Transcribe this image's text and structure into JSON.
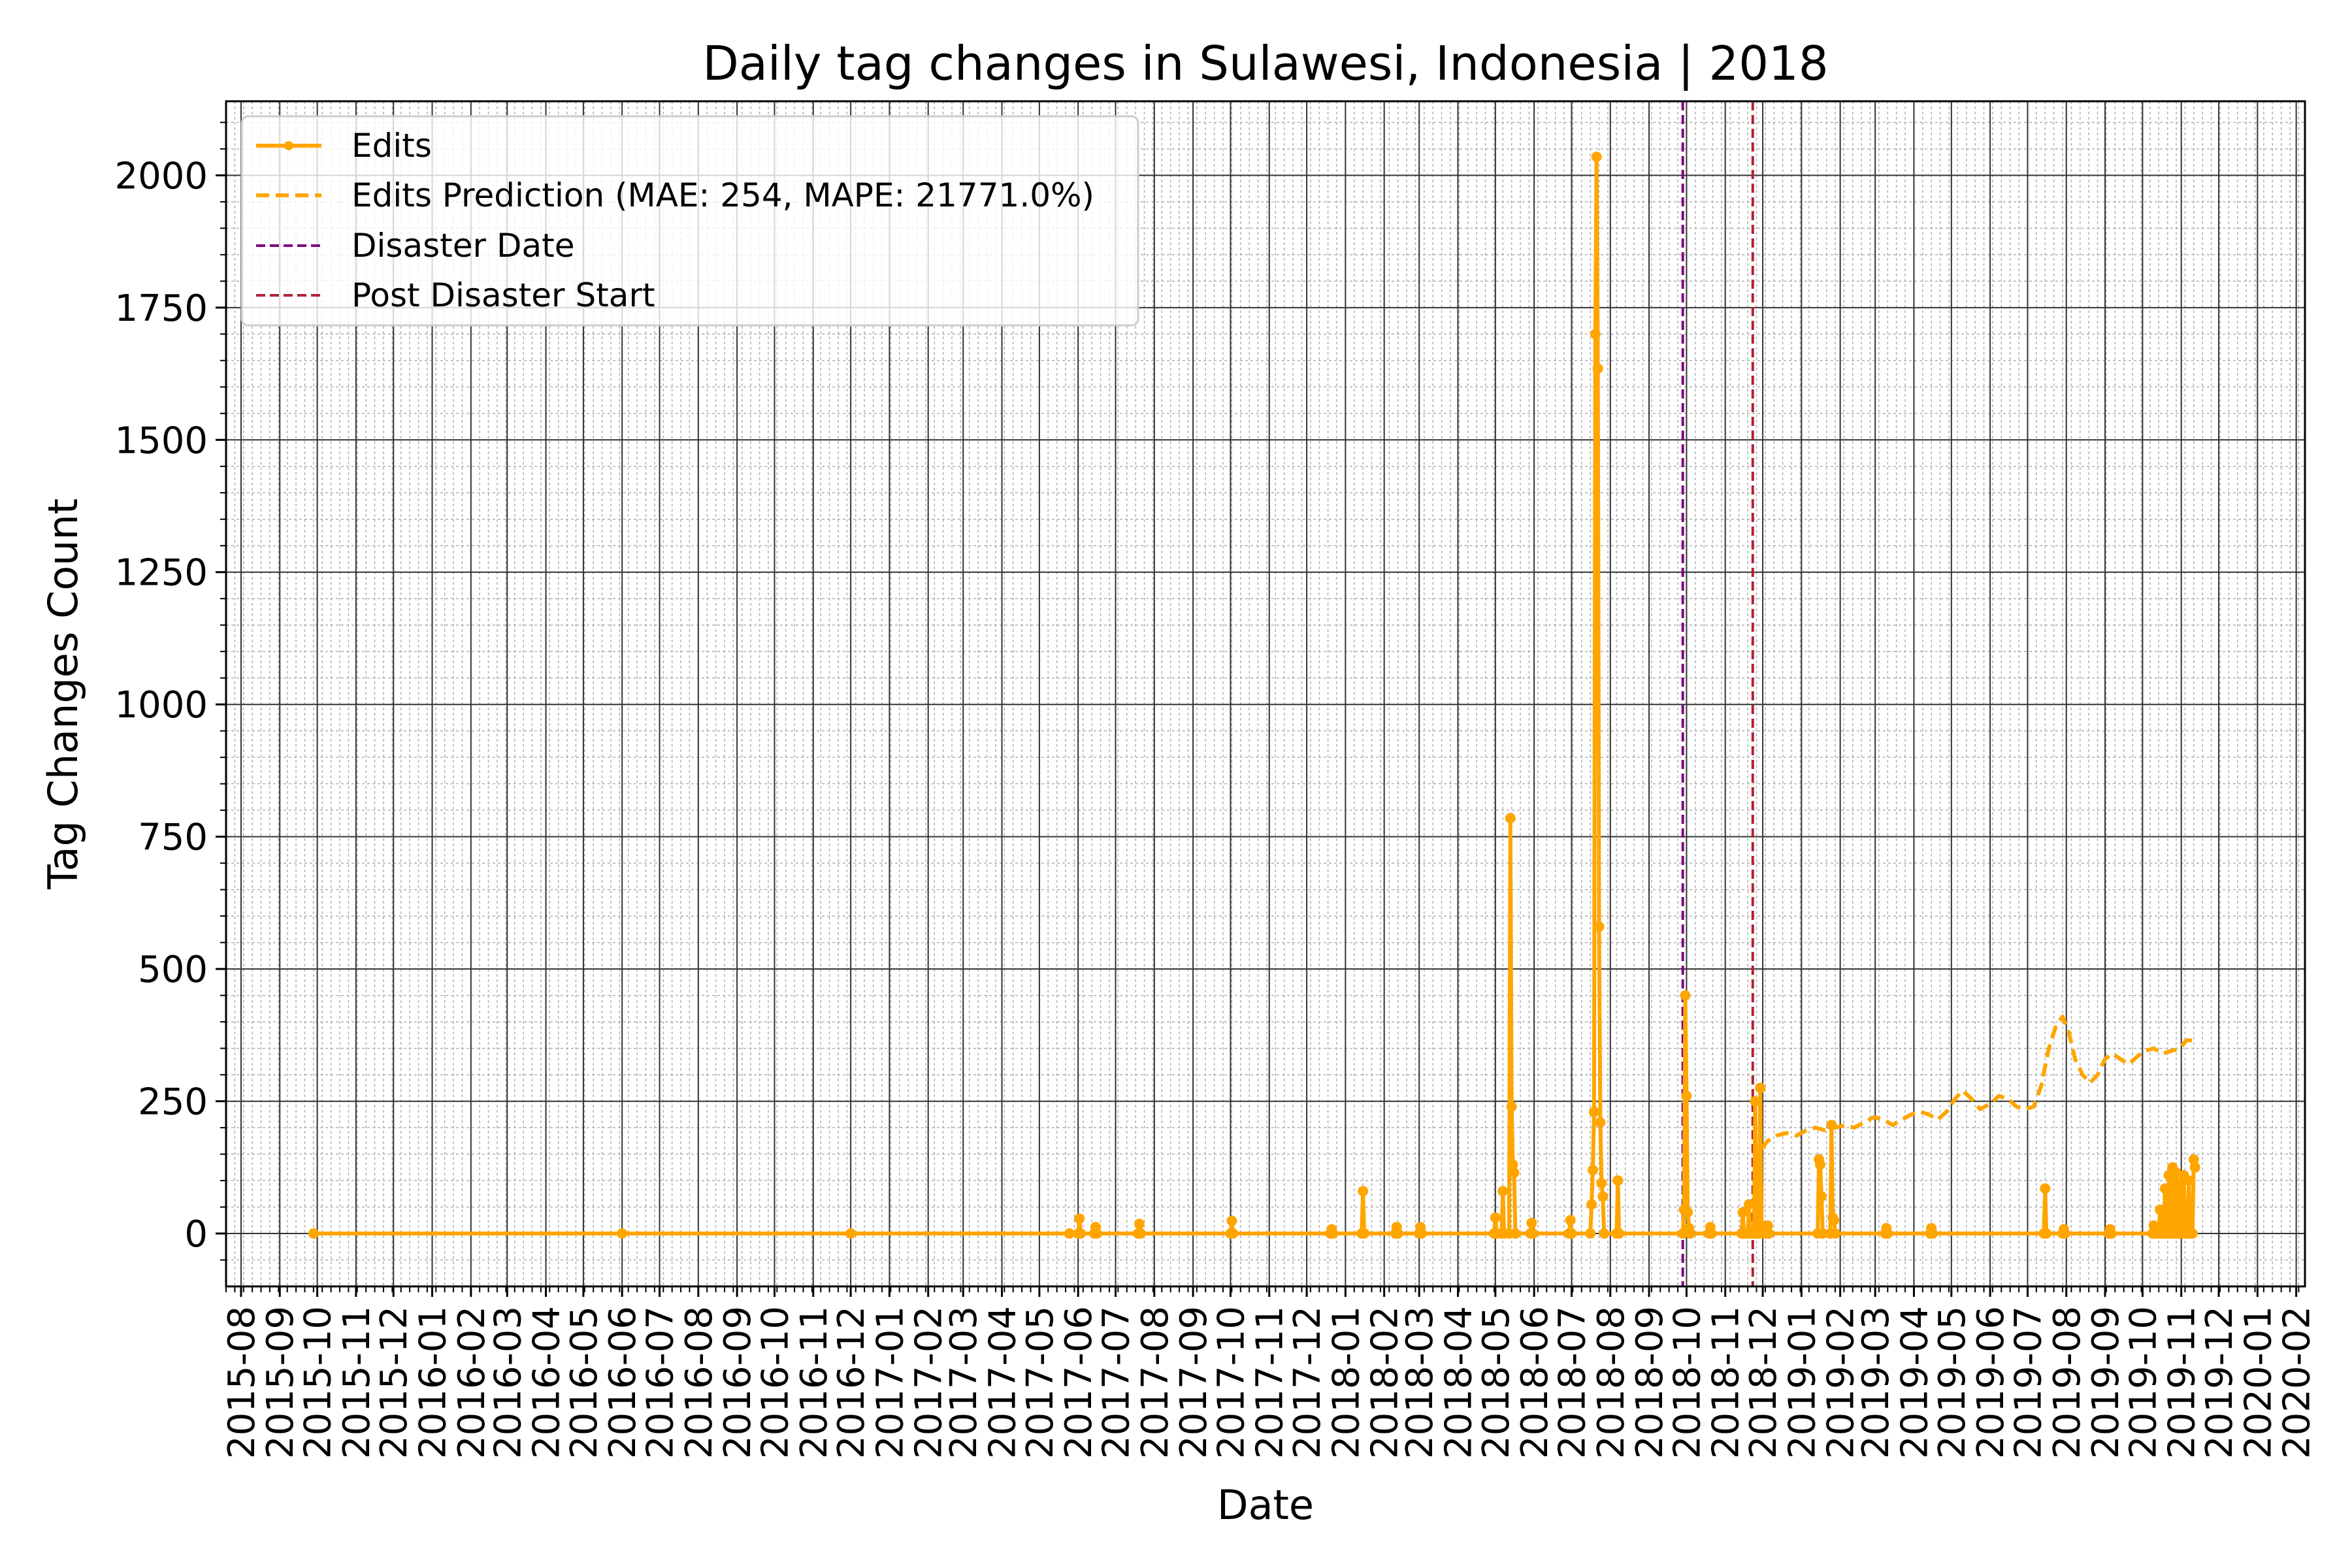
{
  "chart_data": {
    "type": "line",
    "title": "Daily tag changes in Sulawesi, Indonesia | 2018",
    "xlabel": "Date",
    "ylabel": "Tag Changes Count",
    "xlim": [
      "2015-07-20",
      "2020-02-08"
    ],
    "ylim": [
      -100,
      2140
    ],
    "yticks": [
      0,
      250,
      500,
      750,
      1000,
      1250,
      1500,
      1750,
      2000
    ],
    "xticks": [
      "2015-08",
      "2015-09",
      "2015-10",
      "2015-11",
      "2015-12",
      "2016-01",
      "2016-02",
      "2016-03",
      "2016-04",
      "2016-05",
      "2016-06",
      "2016-07",
      "2016-08",
      "2016-09",
      "2016-10",
      "2016-11",
      "2016-12",
      "2017-01",
      "2017-02",
      "2017-03",
      "2017-04",
      "2017-05",
      "2017-06",
      "2017-07",
      "2017-08",
      "2017-09",
      "2017-10",
      "2017-11",
      "2017-12",
      "2018-01",
      "2018-02",
      "2018-03",
      "2018-04",
      "2018-05",
      "2018-06",
      "2018-07",
      "2018-08",
      "2018-09",
      "2018-10",
      "2018-11",
      "2018-12",
      "2019-01",
      "2019-02",
      "2019-03",
      "2019-04",
      "2019-05",
      "2019-06",
      "2019-07",
      "2019-08",
      "2019-09",
      "2019-10",
      "2019-11",
      "2019-12",
      "2020-01",
      "2020-02"
    ],
    "grid": true,
    "legend_position": "top-left",
    "colors": {
      "edits": "#ffa500",
      "prediction": "#ffa500",
      "disaster": "#800080",
      "post_disaster": "#b22234",
      "grid_major": "#333333",
      "grid_minor": "#b0b0b0"
    },
    "series": [
      {
        "name": "Edits",
        "style": "line-markers",
        "points": [
          [
            "2015-09-28",
            0
          ],
          [
            "2016-06-01",
            0
          ],
          [
            "2016-12-01",
            0
          ],
          [
            "2017-05-25",
            0
          ],
          [
            "2017-06-01",
            0
          ],
          [
            "2017-06-02",
            28
          ],
          [
            "2017-06-03",
            0
          ],
          [
            "2017-06-14",
            0
          ],
          [
            "2017-06-15",
            12
          ],
          [
            "2017-06-16",
            0
          ],
          [
            "2017-07-19",
            0
          ],
          [
            "2017-07-20",
            18
          ],
          [
            "2017-07-21",
            0
          ],
          [
            "2017-10-01",
            0
          ],
          [
            "2017-10-02",
            24
          ],
          [
            "2017-10-03",
            0
          ],
          [
            "2017-12-20",
            0
          ],
          [
            "2017-12-21",
            8
          ],
          [
            "2017-12-22",
            0
          ],
          [
            "2018-01-14",
            0
          ],
          [
            "2018-01-15",
            80
          ],
          [
            "2018-01-16",
            0
          ],
          [
            "2018-02-10",
            0
          ],
          [
            "2018-02-11",
            12
          ],
          [
            "2018-02-12",
            0
          ],
          [
            "2018-03-01",
            0
          ],
          [
            "2018-03-02",
            12
          ],
          [
            "2018-03-03",
            0
          ],
          [
            "2018-04-30",
            0
          ],
          [
            "2018-05-01",
            30
          ],
          [
            "2018-05-02",
            0
          ],
          [
            "2018-05-06",
            0
          ],
          [
            "2018-05-07",
            80
          ],
          [
            "2018-05-08",
            0
          ],
          [
            "2018-05-12",
            0
          ],
          [
            "2018-05-13",
            785
          ],
          [
            "2018-05-14",
            240
          ],
          [
            "2018-05-15",
            130
          ],
          [
            "2018-05-16",
            115
          ],
          [
            "2018-05-17",
            0
          ],
          [
            "2018-05-29",
            0
          ],
          [
            "2018-05-30",
            20
          ],
          [
            "2018-05-31",
            0
          ],
          [
            "2018-06-29",
            0
          ],
          [
            "2018-06-30",
            25
          ],
          [
            "2018-07-01",
            0
          ],
          [
            "2018-07-16",
            0
          ],
          [
            "2018-07-17",
            55
          ],
          [
            "2018-07-18",
            120
          ],
          [
            "2018-07-19",
            230
          ],
          [
            "2018-07-20",
            1700
          ],
          [
            "2018-07-21",
            2035
          ],
          [
            "2018-07-22",
            1635
          ],
          [
            "2018-07-23",
            580
          ],
          [
            "2018-07-24",
            210
          ],
          [
            "2018-07-25",
            95
          ],
          [
            "2018-07-26",
            70
          ],
          [
            "2018-07-27",
            0
          ],
          [
            "2018-08-06",
            0
          ],
          [
            "2018-08-07",
            100
          ],
          [
            "2018-08-08",
            0
          ],
          [
            "2018-09-28",
            0
          ],
          [
            "2018-09-29",
            45
          ],
          [
            "2018-09-30",
            450
          ],
          [
            "2018-10-01",
            260
          ],
          [
            "2018-10-02",
            40
          ],
          [
            "2018-10-03",
            10
          ],
          [
            "2018-10-04",
            0
          ],
          [
            "2018-10-19",
            0
          ],
          [
            "2018-10-20",
            12
          ],
          [
            "2018-10-21",
            0
          ],
          [
            "2018-11-14",
            0
          ],
          [
            "2018-11-15",
            40
          ],
          [
            "2018-11-16",
            0
          ],
          [
            "2018-11-19",
            0
          ],
          [
            "2018-11-20",
            55
          ],
          [
            "2018-11-21",
            0
          ],
          [
            "2018-11-24",
            0
          ],
          [
            "2018-11-25",
            250
          ],
          [
            "2018-11-26",
            0
          ],
          [
            "2018-11-28",
            0
          ],
          [
            "2018-11-29",
            275
          ],
          [
            "2018-11-30",
            15
          ],
          [
            "2018-12-01",
            0
          ],
          [
            "2018-12-04",
            0
          ],
          [
            "2018-12-05",
            15
          ],
          [
            "2018-12-06",
            0
          ],
          [
            "2019-01-14",
            0
          ],
          [
            "2019-01-15",
            140
          ],
          [
            "2019-01-16",
            130
          ],
          [
            "2019-01-17",
            70
          ],
          [
            "2019-01-18",
            0
          ],
          [
            "2019-01-24",
            0
          ],
          [
            "2019-01-25",
            205
          ],
          [
            "2019-01-26",
            30
          ],
          [
            "2019-01-27",
            25
          ],
          [
            "2019-01-28",
            0
          ],
          [
            "2019-03-09",
            0
          ],
          [
            "2019-03-10",
            10
          ],
          [
            "2019-03-11",
            0
          ],
          [
            "2019-04-14",
            0
          ],
          [
            "2019-04-15",
            10
          ],
          [
            "2019-04-16",
            0
          ],
          [
            "2019-07-14",
            0
          ],
          [
            "2019-07-15",
            85
          ],
          [
            "2019-07-16",
            0
          ],
          [
            "2019-07-29",
            0
          ],
          [
            "2019-07-30",
            8
          ],
          [
            "2019-07-31",
            0
          ],
          [
            "2019-09-04",
            0
          ],
          [
            "2019-09-05",
            8
          ],
          [
            "2019-09-06",
            0
          ],
          [
            "2019-10-09",
            0
          ],
          [
            "2019-10-10",
            15
          ],
          [
            "2019-10-11",
            0
          ],
          [
            "2019-10-14",
            0
          ],
          [
            "2019-10-15",
            45
          ],
          [
            "2019-10-16",
            0
          ],
          [
            "2019-10-18",
            0
          ],
          [
            "2019-10-19",
            85
          ],
          [
            "2019-10-20",
            0
          ],
          [
            "2019-10-21",
            0
          ],
          [
            "2019-10-22",
            110
          ],
          [
            "2019-10-23",
            0
          ],
          [
            "2019-10-24",
            0
          ],
          [
            "2019-10-25",
            125
          ],
          [
            "2019-10-26",
            0
          ],
          [
            "2019-10-27",
            0
          ],
          [
            "2019-10-28",
            115
          ],
          [
            "2019-10-29",
            0
          ],
          [
            "2019-10-30",
            0
          ],
          [
            "2019-10-31",
            95
          ],
          [
            "2019-11-01",
            0
          ],
          [
            "2019-11-02",
            0
          ],
          [
            "2019-11-03",
            110
          ],
          [
            "2019-11-04",
            0
          ],
          [
            "2019-11-06",
            0
          ],
          [
            "2019-11-07",
            100
          ],
          [
            "2019-11-08",
            0
          ],
          [
            "2019-11-10",
            0
          ],
          [
            "2019-11-11",
            140
          ],
          [
            "2019-11-12",
            125
          ]
        ]
      },
      {
        "name": "Edits Prediction (MAE: 254, MAPE: 21771.0%)",
        "style": "dashed",
        "points": [
          [
            "2018-11-30",
            160
          ],
          [
            "2018-12-05",
            175
          ],
          [
            "2018-12-12",
            185
          ],
          [
            "2018-12-20",
            190
          ],
          [
            "2018-12-28",
            185
          ],
          [
            "2019-01-05",
            195
          ],
          [
            "2019-01-12",
            200
          ],
          [
            "2019-01-20",
            195
          ],
          [
            "2019-01-28",
            200
          ],
          [
            "2019-02-05",
            205
          ],
          [
            "2019-02-12",
            200
          ],
          [
            "2019-02-20",
            210
          ],
          [
            "2019-02-28",
            220
          ],
          [
            "2019-03-08",
            215
          ],
          [
            "2019-03-15",
            205
          ],
          [
            "2019-03-22",
            215
          ],
          [
            "2019-03-30",
            225
          ],
          [
            "2019-04-06",
            230
          ],
          [
            "2019-04-13",
            225
          ],
          [
            "2019-04-20",
            215
          ],
          [
            "2019-04-27",
            230
          ],
          [
            "2019-05-04",
            255
          ],
          [
            "2019-05-10",
            270
          ],
          [
            "2019-05-17",
            255
          ],
          [
            "2019-05-24",
            235
          ],
          [
            "2019-06-01",
            245
          ],
          [
            "2019-06-08",
            260
          ],
          [
            "2019-06-15",
            255
          ],
          [
            "2019-06-22",
            240
          ],
          [
            "2019-06-29",
            235
          ],
          [
            "2019-07-06",
            240
          ],
          [
            "2019-07-12",
            280
          ],
          [
            "2019-07-18",
            350
          ],
          [
            "2019-07-24",
            395
          ],
          [
            "2019-07-29",
            410
          ],
          [
            "2019-08-03",
            380
          ],
          [
            "2019-08-08",
            330
          ],
          [
            "2019-08-14",
            300
          ],
          [
            "2019-08-20",
            285
          ],
          [
            "2019-08-26",
            300
          ],
          [
            "2019-09-01",
            330
          ],
          [
            "2019-09-07",
            340
          ],
          [
            "2019-09-13",
            330
          ],
          [
            "2019-09-20",
            320
          ],
          [
            "2019-09-27",
            335
          ],
          [
            "2019-10-03",
            345
          ],
          [
            "2019-10-10",
            350
          ],
          [
            "2019-10-17",
            340
          ],
          [
            "2019-10-24",
            345
          ],
          [
            "2019-10-31",
            350
          ],
          [
            "2019-11-05",
            365
          ],
          [
            "2019-11-12",
            365
          ]
        ]
      }
    ],
    "vlines": [
      {
        "name": "Disaster Date",
        "x": "2018-09-28"
      },
      {
        "name": "Post Disaster Start",
        "x": "2018-11-23"
      }
    ]
  }
}
